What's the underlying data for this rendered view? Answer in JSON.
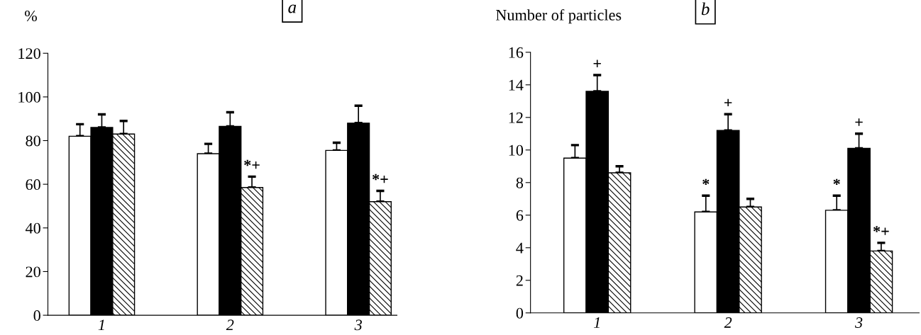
{
  "chart_data": [
    {
      "type": "bar",
      "title": "a",
      "ylabel": "%",
      "categories": [
        "1",
        "2",
        "3"
      ],
      "series": [
        {
          "color": "#ffffff",
          "values": [
            82,
            74,
            75.5
          ],
          "errors": [
            5.5,
            4.5,
            3.5
          ]
        },
        {
          "color": "#000000",
          "values": [
            86,
            86.5,
            88
          ],
          "errors": [
            6,
            6.5,
            8
          ]
        },
        {
          "color": "#000000",
          "values": [
            83,
            58.5,
            52
          ],
          "errors": [
            6,
            5,
            5
          ],
          "value_labels": [
            null,
            "*+",
            "*+"
          ]
        }
      ],
      "ylim": [
        0,
        120
      ],
      "yticks": [
        0,
        20,
        40,
        60,
        80,
        100,
        120
      ],
      "grid": false,
      "legend": false
    },
    {
      "type": "bar",
      "title": "b",
      "ylabel": "Number of particles",
      "categories": [
        "1",
        "2",
        "3"
      ],
      "series": [
        {
          "color": "#ffffff",
          "values": [
            9.5,
            6.2,
            6.3
          ],
          "errors": [
            0.8,
            1.0,
            0.9
          ],
          "value_labels": [
            null,
            "*",
            "*"
          ]
        },
        {
          "color": "#000000",
          "values": [
            13.6,
            11.2,
            10.1
          ],
          "errors": [
            1.0,
            1.0,
            0.9
          ],
          "value_labels": [
            "+",
            "+",
            "+"
          ]
        },
        {
          "color": "#000000",
          "values": [
            8.6,
            6.5,
            3.8
          ],
          "errors": [
            0.4,
            0.5,
            0.5
          ],
          "value_labels": [
            null,
            null,
            "*+"
          ]
        }
      ],
      "ylim": [
        0,
        16
      ],
      "yticks": [
        0,
        2,
        4,
        6,
        8,
        10,
        12,
        14,
        16
      ],
      "grid": false,
      "legend": false
    }
  ]
}
